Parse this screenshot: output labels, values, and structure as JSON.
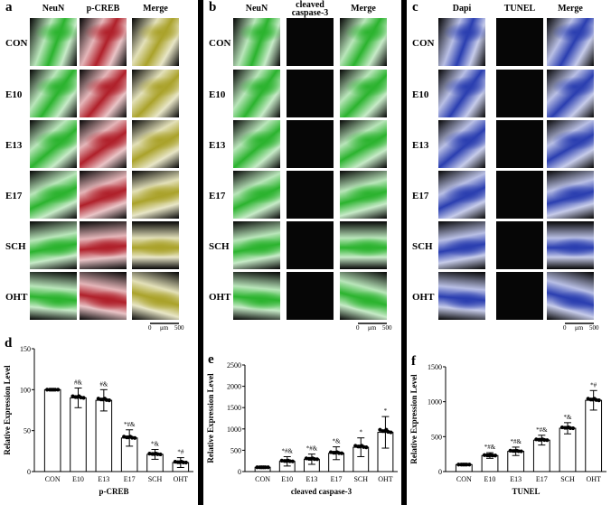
{
  "panels": [
    {
      "letter": "a",
      "columns": [
        "NeuN",
        "p-CREB",
        "Merge"
      ],
      "rows": [
        "CON",
        "E10",
        "E13",
        "E17",
        "SCH",
        "OHT"
      ],
      "scalebar": {
        "left": "0",
        "unit": "μm",
        "right": "500"
      }
    },
    {
      "letter": "b",
      "columns": [
        "NeuN",
        "cleaved\ncaspase-3",
        "Merge"
      ],
      "rows": [
        "CON",
        "E10",
        "E13",
        "E17",
        "SCH",
        "OHT"
      ],
      "scalebar": {
        "left": "0",
        "unit": "μm",
        "right": "500"
      }
    },
    {
      "letter": "c",
      "columns": [
        "Dapi",
        "TUNEL",
        "Merge"
      ],
      "rows": [
        "CON",
        "E10",
        "E13",
        "E17",
        "SCH",
        "OHT"
      ],
      "scalebar": {
        "left": "0",
        "unit": "μm",
        "right": "500"
      }
    }
  ],
  "tile_colors": {
    "green": "#2bb32e",
    "red": "#b0202a",
    "blue": "#2a3eb0",
    "yellow": "#aaa22a",
    "dark": "#070707"
  },
  "chart_data": [
    {
      "letter": "d",
      "type": "bar",
      "categories": [
        "CON",
        "E10",
        "E13",
        "E17",
        "SCH",
        "OHT"
      ],
      "values": [
        100,
        90,
        87,
        41,
        21,
        11
      ],
      "errors": [
        0,
        12,
        13,
        10,
        6,
        6
      ],
      "annotations": [
        "",
        "#&",
        "#&",
        "*#&",
        "*&",
        "*#"
      ],
      "xlabel": "p-CREB",
      "ylabel": "Relative Expression Level",
      "ylim": [
        0,
        150
      ],
      "yticks": [
        0,
        50,
        100,
        150
      ]
    },
    {
      "letter": "e",
      "type": "bar",
      "categories": [
        "CON",
        "E10",
        "E13",
        "E17",
        "SCH",
        "OHT"
      ],
      "values": [
        100,
        240,
        290,
        430,
        570,
        920
      ],
      "errors": [
        0,
        110,
        120,
        150,
        220,
        370
      ],
      "annotations": [
        "",
        "*#&",
        "*#&",
        "*&",
        "*",
        "*"
      ],
      "xlabel": "cleaved caspase-3",
      "ylabel": "Relative Expression Level",
      "ylim": [
        0,
        2500
      ],
      "yticks": [
        0,
        500,
        1000,
        1500,
        2000,
        2500
      ]
    },
    {
      "letter": "f",
      "type": "bar",
      "categories": [
        "CON",
        "E10",
        "E13",
        "E17",
        "SCH",
        "OHT"
      ],
      "values": [
        100,
        230,
        290,
        450,
        620,
        1020
      ],
      "errors": [
        0,
        40,
        60,
        70,
        80,
        140
      ],
      "annotations": [
        "",
        "*#&",
        "*#&",
        "*#&",
        "*&",
        "*#"
      ],
      "xlabel": "TUNEL",
      "ylabel": "Relative Expression Level",
      "ylim": [
        0,
        1500
      ],
      "yticks": [
        0,
        500,
        1000,
        1500
      ]
    }
  ]
}
